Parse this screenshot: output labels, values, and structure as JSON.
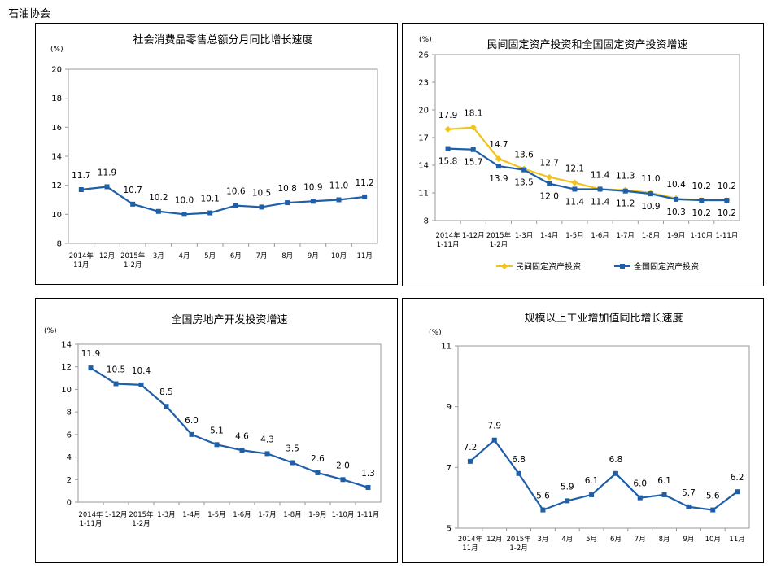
{
  "organization": "石油协会",
  "colors": {
    "blue": "#1f5fa8",
    "gold": "#f2c318",
    "text": "#000000",
    "frame": "#9a9a9a"
  },
  "chart_data": [
    {
      "type": "line",
      "title": "社会消费品零售总额分月同比增长速度",
      "ylabel": "(%)",
      "ylim": [
        8,
        20
      ],
      "yticks": [
        "8",
        "10",
        "12",
        "14",
        "16",
        "18",
        "20"
      ],
      "categories": [
        "2014年\n11月",
        "12月",
        "2015年\n1-2月",
        "3月",
        "4月",
        "5月",
        "6月",
        "7月",
        "8月",
        "9月",
        "10月",
        "11月"
      ],
      "series": [
        {
          "name": "",
          "color": "#1f5fa8",
          "values": [
            11.7,
            11.9,
            10.7,
            10.2,
            10.0,
            10.1,
            10.6,
            10.5,
            10.8,
            10.9,
            11.0,
            11.2
          ],
          "labels": [
            "11.7",
            "11.9",
            "10.7",
            "10.2",
            "10.0",
            "10.1",
            "10.6",
            "10.5",
            "10.8",
            "10.9",
            "11.0",
            "11.2"
          ]
        }
      ],
      "grid": false
    },
    {
      "type": "line",
      "title": "民间固定资产投资和全国固定资产投资增速",
      "ylabel": "(%)",
      "ylim": [
        8,
        26
      ],
      "yticks": [
        "8",
        "11",
        "14",
        "17",
        "20",
        "23",
        "26"
      ],
      "categories": [
        "2014年\n1-11月",
        "1-12月",
        "2015年\n1-2月",
        "1-3月",
        "1-4月",
        "1-5月",
        "1-6月",
        "1-7月",
        "1-8月",
        "1-9月",
        "1-10月",
        "1-11月"
      ],
      "series": [
        {
          "name": "民间固定资产投资",
          "color": "#f2c318",
          "values": [
            17.9,
            18.1,
            14.7,
            13.6,
            12.7,
            12.1,
            11.4,
            11.3,
            11.0,
            10.4,
            10.2,
            10.2
          ],
          "labels": [
            "17.9",
            "18.1",
            "14.7",
            "13.6",
            "12.7",
            "12.1",
            "11.4",
            "11.3",
            "11.0",
            "10.4",
            "10.2",
            "10.2"
          ]
        },
        {
          "name": "全国固定资产投资",
          "color": "#1f5fa8",
          "values": [
            15.8,
            15.7,
            13.9,
            13.5,
            12.0,
            11.4,
            11.4,
            11.2,
            10.9,
            10.3,
            10.2,
            10.2
          ],
          "labels": [
            "15.8",
            "15.7",
            "13.9",
            "13.5",
            "12.0",
            "11.4",
            "11.4",
            "11.2",
            "10.9",
            "10.3",
            "10.2",
            "10.2"
          ]
        }
      ],
      "legend": "bottom",
      "grid": false
    },
    {
      "type": "line",
      "title": "全国房地产开发投资增速",
      "ylabel": "(%)",
      "ylim": [
        0,
        14
      ],
      "yticks": [
        "0",
        "2",
        "4",
        "6",
        "8",
        "10",
        "12",
        "14"
      ],
      "categories": [
        "2014年\n1-11月",
        "1-12月",
        "2015年\n1-2月",
        "1-3月",
        "1-4月",
        "1-5月",
        "1-6月",
        "1-7月",
        "1-8月",
        "1-9月",
        "1-10月",
        "1-11月"
      ],
      "series": [
        {
          "name": "",
          "color": "#1f5fa8",
          "values": [
            11.9,
            10.5,
            10.4,
            8.5,
            6.0,
            5.1,
            4.6,
            4.3,
            3.5,
            2.6,
            2.0,
            1.3
          ],
          "labels": [
            "11.9",
            "10.5",
            "10.4",
            "8.5",
            "6.0",
            "5.1",
            "4.6",
            "4.3",
            "3.5",
            "2.6",
            "2.0",
            "1.3"
          ]
        }
      ],
      "grid": false
    },
    {
      "type": "line",
      "title": "规模以上工业增加值同比增长速度",
      "ylabel": "(%)",
      "ylim": [
        5,
        11
      ],
      "yticks": [
        "5",
        "7",
        "9",
        "11"
      ],
      "categories": [
        "2014年\n11月",
        "12月",
        "2015年\n1-2月",
        "3月",
        "4月",
        "5月",
        "6月",
        "7月",
        "8月",
        "9月",
        "10月",
        "11月"
      ],
      "series": [
        {
          "name": "",
          "color": "#1f5fa8",
          "values": [
            7.2,
            7.9,
            6.8,
            5.6,
            5.9,
            6.1,
            6.8,
            6.0,
            6.1,
            5.7,
            5.6,
            6.2
          ],
          "labels": [
            "7.2",
            "7.9",
            "6.8",
            "5.6",
            "5.9",
            "6.1",
            "6.8",
            "6.0",
            "6.1",
            "5.7",
            "5.6",
            "6.2"
          ]
        }
      ],
      "grid": false
    }
  ]
}
